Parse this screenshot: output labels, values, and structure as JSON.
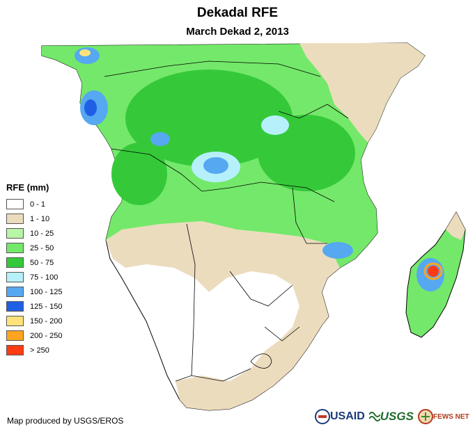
{
  "title": "Dekadal RFE",
  "subtitle": "March Dekad 2, 2013",
  "legend": {
    "title": "RFE (mm)",
    "items": [
      {
        "label": "0 - 1",
        "color": "#ffffff"
      },
      {
        "label": "1 - 10",
        "color": "#ecdcbe"
      },
      {
        "label": "10 - 25",
        "color": "#b8f5a6"
      },
      {
        "label": "25 - 50",
        "color": "#74e86a"
      },
      {
        "label": "50 - 75",
        "color": "#35c93a"
      },
      {
        "label": "75 - 100",
        "color": "#b6f0fb"
      },
      {
        "label": "100 - 125",
        "color": "#56a8f0"
      },
      {
        "label": "125 - 150",
        "color": "#1f5fe6"
      },
      {
        "label": "150 - 200",
        "color": "#ffe27a"
      },
      {
        "label": "200 - 250",
        "color": "#ffa51f"
      },
      {
        "label": "> 250",
        "color": "#ff3b14"
      }
    ]
  },
  "credit": "Map produced by USGS/EROS",
  "logos": {
    "usaid": "USAID",
    "usgs": "USGS",
    "fews": "FEWS NET"
  }
}
